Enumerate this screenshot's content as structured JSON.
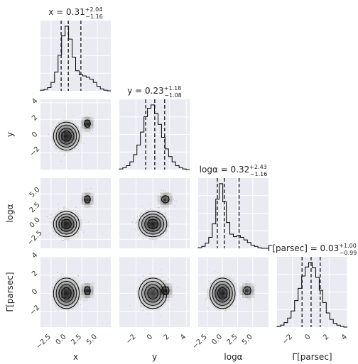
{
  "chart_data": {
    "type": "corner",
    "parameters": [
      {
        "symbol": "x",
        "label": "x",
        "median": "0.31",
        "plus": "+2.04",
        "minus": "−1.16",
        "quantiles": [
          -0.85,
          0.31,
          2.35
        ],
        "range": [
          -4.2,
          7.2
        ],
        "ticks": [
          -2.5,
          0.0,
          2.5,
          5.0
        ],
        "tick_labels": [
          "−2.5",
          "0.0",
          "2.5",
          "5.0"
        ],
        "histogram": [
          0.01,
          0.02,
          0.05,
          0.13,
          0.29,
          0.55,
          0.85,
          1.0,
          0.8,
          0.52,
          0.31,
          0.25,
          0.23,
          0.21,
          0.18,
          0.13,
          0.07,
          0.03,
          0.01,
          0.0
        ]
      },
      {
        "symbol": "y",
        "label": "y",
        "median": "0.23",
        "plus": "+1.18",
        "minus": "−1.08",
        "quantiles": [
          -0.85,
          0.23,
          1.41
        ],
        "range": [
          -4.0,
          4.4
        ],
        "ticks": [
          -2,
          0,
          2,
          4
        ],
        "tick_labels": [
          "−2",
          "0",
          "2",
          "4"
        ],
        "histogram": [
          0.01,
          0.03,
          0.06,
          0.12,
          0.23,
          0.38,
          0.58,
          0.82,
          0.95,
          1.0,
          0.87,
          0.7,
          0.5,
          0.32,
          0.2,
          0.12,
          0.06,
          0.03,
          0.01,
          0.0
        ]
      },
      {
        "symbol": "logα",
        "label": "logα",
        "median": "0.32",
        "plus": "+2.43",
        "minus": "−1.16",
        "quantiles": [
          -0.84,
          0.32,
          2.75
        ],
        "range": [
          -4.0,
          7.6
        ],
        "ticks": [
          -2.5,
          0.0,
          2.5,
          5.0
        ],
        "tick_labels": [
          "−2.5",
          "0.0",
          "2.5",
          "5.0"
        ],
        "histogram": [
          0.01,
          0.03,
          0.08,
          0.17,
          0.38,
          0.76,
          1.0,
          0.72,
          0.4,
          0.22,
          0.18,
          0.2,
          0.17,
          0.13,
          0.09,
          0.05,
          0.03,
          0.01,
          0.0,
          0.0
        ]
      },
      {
        "symbol": "Γ[parsec]",
        "label": "Γ[parsec]",
        "median": "0.03",
        "plus": "+1.00",
        "minus": "−0.99",
        "quantiles": [
          -0.96,
          0.03,
          1.03
        ],
        "range": [
          -3.7,
          4.0
        ],
        "ticks": [
          -2,
          0,
          2,
          4
        ],
        "tick_labels": [
          "−2",
          "0",
          "2",
          "4"
        ],
        "histogram": [
          0.01,
          0.03,
          0.07,
          0.14,
          0.25,
          0.41,
          0.6,
          0.79,
          0.93,
          1.0,
          0.92,
          0.77,
          0.57,
          0.38,
          0.22,
          0.12,
          0.06,
          0.03,
          0.01,
          0.0
        ]
      }
    ],
    "density_modes": [
      {
        "weight": 0.8,
        "mean": [
          0.0,
          0.0,
          0.0,
          0.0
        ]
      },
      {
        "weight": 0.2,
        "mean": [
          3.4,
          1.5,
          4.1,
          0.3
        ]
      }
    ],
    "grid": true,
    "background": "#eaeaf2",
    "line_color": "#000000"
  }
}
